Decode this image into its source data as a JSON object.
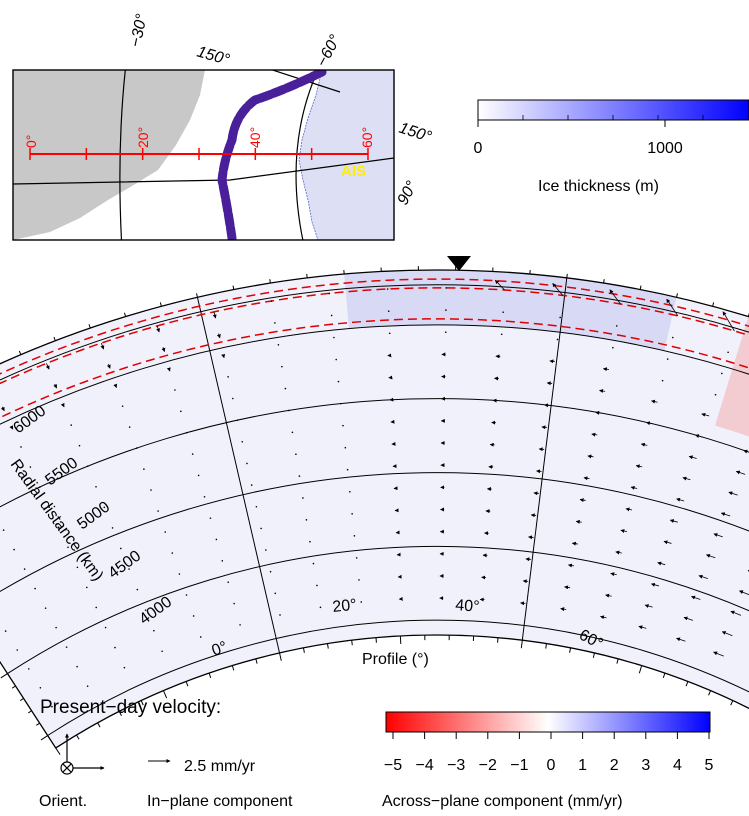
{
  "map_inset": {
    "lon_labels": [
      "−30°",
      "−60°",
      "150°",
      "150°",
      "90°"
    ],
    "profile_ticks": [
      "0°",
      "20°",
      "40°",
      "60°"
    ],
    "region_label": "AIS",
    "colors": {
      "land": "#c8c8c8",
      "ice": "#dde0f4",
      "track": "#4a1f9a",
      "profile": "#ff0000",
      "region_label": "#ffee00"
    }
  },
  "ice_colorbar": {
    "tick_labels": [
      "0",
      "1000"
    ],
    "label": "Ice thickness (m)",
    "colors": {
      "low": "#ffffff",
      "high": "#0000ff"
    }
  },
  "cross_section": {
    "radial_axis_label": "Radial distance (km)",
    "radial_ticks": [
      "4000",
      "4500",
      "5000",
      "5500",
      "6000"
    ],
    "profile_ticks": [
      "0°",
      "20°",
      "40°",
      "60°"
    ],
    "profile_label": "Profile (°)",
    "marker": "inverted-triangle",
    "colors": {
      "dashed_boundaries": "#ff0000",
      "vectors": "#000000"
    }
  },
  "legend": {
    "title": "Present−day velocity:",
    "orient_label": "Orient.",
    "vector_scale_label": "2.5 mm/yr",
    "in_plane_label": "In−plane component",
    "across_plane_label": "Across−plane component (mm/yr)",
    "across_colorbar_ticks": [
      "−5",
      "−4",
      "−3",
      "−2",
      "−1",
      "0",
      "1",
      "2",
      "3",
      "4",
      "5"
    ],
    "colors": {
      "negative": "#ff0000",
      "zero": "#ffffff",
      "positive": "#0000ff"
    }
  }
}
